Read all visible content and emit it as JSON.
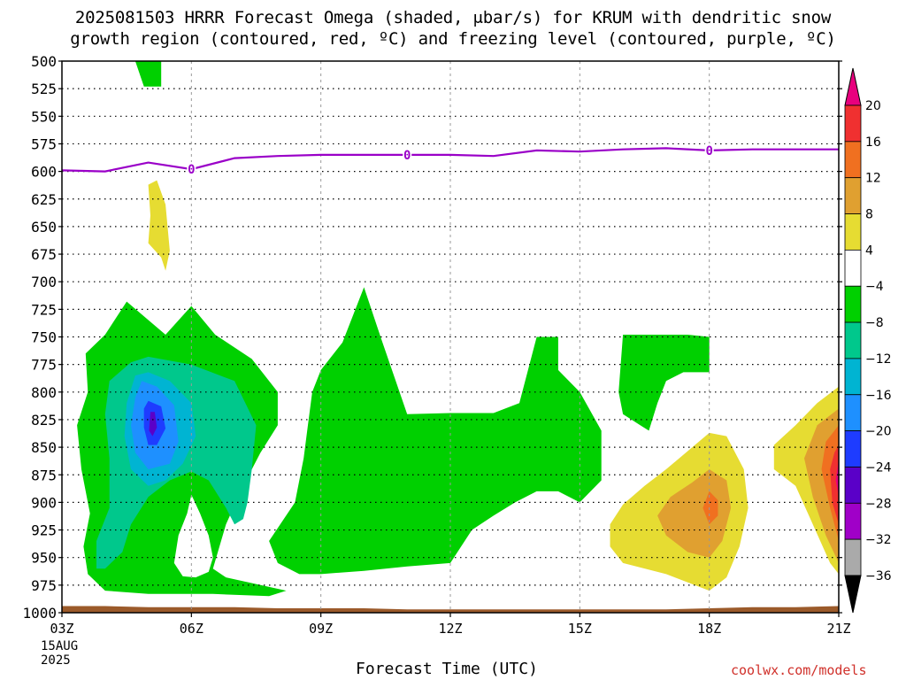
{
  "title": {
    "line1": "2025081503 HRRR Forecast Omega (shaded, μbar/s) for KRUM with dendritic snow",
    "line2": "growth region (contoured, red, ºC) and freezing level (contoured, purple, ºC)"
  },
  "x_axis_label": "Forecast Time (UTC)",
  "date_label": [
    "15AUG",
    "2025"
  ],
  "credit": "coolwx.com/models",
  "chart_data": {
    "type": "heatmap",
    "y_axis": {
      "ticks": [
        500,
        525,
        550,
        575,
        600,
        625,
        650,
        675,
        700,
        725,
        750,
        775,
        800,
        825,
        850,
        875,
        900,
        925,
        950,
        975,
        1000
      ],
      "tick_labels": [
        "500",
        "525",
        "550",
        "575",
        "600",
        "625",
        "650",
        "675",
        "700",
        "725",
        "750",
        "775",
        "800",
        "825",
        "850",
        "875",
        "900",
        "925",
        "950",
        "975",
        "1000"
      ],
      "range": [
        500,
        1000
      ],
      "inverted": true
    },
    "x_axis": {
      "tick_hours": [
        3,
        6,
        9,
        12,
        15,
        18,
        21
      ],
      "tick_labels": [
        "03Z",
        "06Z",
        "09Z",
        "12Z",
        "15Z",
        "18Z",
        "21Z"
      ],
      "range": [
        3,
        21
      ]
    },
    "grid": true,
    "freezing_level": {
      "color": "#9a00c8",
      "label": "0",
      "label_hours": [
        6,
        11,
        18
      ],
      "hours": [
        3,
        4,
        5,
        6,
        7,
        8,
        9,
        10,
        11,
        12,
        13,
        14,
        15,
        16,
        17,
        18,
        19,
        20,
        21
      ],
      "pressure": [
        599,
        600,
        592,
        598,
        588,
        586,
        585,
        585,
        585,
        585,
        586,
        581,
        582,
        580,
        579,
        581,
        580,
        580,
        580
      ]
    },
    "colorbar": {
      "labels": [
        "20",
        "16",
        "12",
        "8",
        "4",
        "−4",
        "−8",
        "−12",
        "−16",
        "−20",
        "−24",
        "−28",
        "−32",
        "−36"
      ],
      "bands": [
        {
          "from": 20,
          "to": 99,
          "color": "#e8007e"
        },
        {
          "from": 16,
          "to": 20,
          "color": "#f03030"
        },
        {
          "from": 12,
          "to": 16,
          "color": "#f07020"
        },
        {
          "from": 8,
          "to": 12,
          "color": "#e0a030"
        },
        {
          "from": 4,
          "to": 8,
          "color": "#e6dc32"
        },
        {
          "from": -4,
          "to": 4,
          "color": "#ffffff"
        },
        {
          "from": -8,
          "to": -4,
          "color": "#00d000"
        },
        {
          "from": -12,
          "to": -8,
          "color": "#00c88c"
        },
        {
          "from": -16,
          "to": -12,
          "color": "#00b4d2"
        },
        {
          "from": -20,
          "to": -16,
          "color": "#1e90ff"
        },
        {
          "from": -24,
          "to": -20,
          "color": "#1e3cff"
        },
        {
          "from": -28,
          "to": -24,
          "color": "#5a00c8"
        },
        {
          "from": -32,
          "to": -28,
          "color": "#a000c8"
        },
        {
          "from": -36,
          "to": -32,
          "color": "#aaaaaa"
        },
        {
          "from": -99,
          "to": -36,
          "color": "#000000"
        }
      ]
    },
    "regions": [
      {
        "name": "green-top",
        "color": "#00d000",
        "pts": [
          [
            4.7,
            500
          ],
          [
            5.3,
            500
          ],
          [
            5.3,
            523
          ],
          [
            4.9,
            523
          ]
        ]
      },
      {
        "name": "yellow-mid",
        "color": "#e6dc32",
        "pts": [
          [
            5.0,
            612
          ],
          [
            5.2,
            608
          ],
          [
            5.4,
            630
          ],
          [
            5.5,
            672
          ],
          [
            5.4,
            690
          ],
          [
            5.3,
            678
          ],
          [
            5.0,
            665
          ],
          [
            5.05,
            640
          ]
        ]
      },
      {
        "name": "green-left",
        "color": "#00d000",
        "pts": [
          [
            4.0,
            748
          ],
          [
            4.5,
            718
          ],
          [
            5.4,
            748
          ],
          [
            6.0,
            722
          ],
          [
            6.55,
            748
          ],
          [
            7.4,
            770
          ],
          [
            8.0,
            800
          ],
          [
            8.0,
            830
          ],
          [
            7.6,
            855
          ],
          [
            7.2,
            885
          ],
          [
            6.8,
            920
          ],
          [
            6.5,
            960
          ],
          [
            6.8,
            968
          ],
          [
            8.2,
            980
          ],
          [
            7.8,
            985
          ],
          [
            6.5,
            983
          ],
          [
            5.0,
            983
          ],
          [
            4.0,
            980
          ],
          [
            3.6,
            965
          ],
          [
            3.5,
            940
          ],
          [
            3.65,
            910
          ],
          [
            3.45,
            870
          ],
          [
            3.35,
            830
          ],
          [
            3.6,
            800
          ],
          [
            3.55,
            765
          ]
        ]
      },
      {
        "name": "green-mid",
        "color": "#00d000",
        "pts": [
          [
            8.8,
            800
          ],
          [
            9.0,
            780
          ],
          [
            9.5,
            755
          ],
          [
            10.0,
            705
          ],
          [
            10.4,
            752
          ],
          [
            11.0,
            820
          ],
          [
            12.0,
            819
          ],
          [
            13.0,
            819
          ],
          [
            13.6,
            810
          ],
          [
            14.0,
            750
          ],
          [
            14.5,
            750
          ],
          [
            14.5,
            780
          ],
          [
            15.0,
            800
          ],
          [
            15.5,
            835
          ],
          [
            15.5,
            880
          ],
          [
            15.0,
            900
          ],
          [
            14.5,
            890
          ],
          [
            14.0,
            890
          ],
          [
            13.5,
            900
          ],
          [
            13.0,
            912
          ],
          [
            12.5,
            925
          ],
          [
            12.0,
            955
          ],
          [
            11.0,
            958
          ],
          [
            10.0,
            962
          ],
          [
            9.0,
            965
          ],
          [
            8.5,
            965
          ],
          [
            8.0,
            955
          ],
          [
            7.8,
            935
          ],
          [
            8.4,
            900
          ],
          [
            8.6,
            860
          ],
          [
            8.7,
            830
          ]
        ]
      },
      {
        "name": "green-right",
        "color": "#00d000",
        "pts": [
          [
            16.0,
            748
          ],
          [
            17.5,
            748
          ],
          [
            18.0,
            750
          ],
          [
            18.0,
            782
          ],
          [
            17.4,
            782
          ],
          [
            17.0,
            790
          ],
          [
            16.8,
            810
          ],
          [
            16.6,
            835
          ],
          [
            16.4,
            830
          ],
          [
            16.0,
            820
          ],
          [
            15.9,
            800
          ]
        ]
      },
      {
        "name": "white-hole",
        "color": "#ffffff",
        "pts": [
          [
            6.0,
            893
          ],
          [
            5.9,
            910
          ],
          [
            5.7,
            930
          ],
          [
            5.6,
            955
          ],
          [
            5.8,
            967
          ],
          [
            6.1,
            968
          ],
          [
            6.4,
            963
          ],
          [
            6.5,
            950
          ],
          [
            6.4,
            930
          ],
          [
            6.2,
            910
          ]
        ]
      },
      {
        "name": "teal-left",
        "color": "#00c88c",
        "pts": [
          [
            4.6,
            773
          ],
          [
            5.0,
            768
          ],
          [
            6.0,
            775
          ],
          [
            7.0,
            790
          ],
          [
            7.5,
            830
          ],
          [
            7.4,
            870
          ],
          [
            7.3,
            900
          ],
          [
            7.2,
            915
          ],
          [
            7.0,
            920
          ],
          [
            6.8,
            905
          ],
          [
            6.4,
            880
          ],
          [
            6.0,
            872
          ],
          [
            5.5,
            880
          ],
          [
            5.0,
            895
          ],
          [
            4.6,
            920
          ],
          [
            4.4,
            945
          ],
          [
            4.0,
            960
          ],
          [
            3.8,
            960
          ],
          [
            3.8,
            935
          ],
          [
            4.1,
            905
          ],
          [
            4.1,
            860
          ],
          [
            4.0,
            820
          ],
          [
            4.1,
            790
          ]
        ]
      },
      {
        "name": "cyan-left",
        "color": "#00b4d2",
        "pts": [
          [
            4.7,
            785
          ],
          [
            5.0,
            782
          ],
          [
            5.5,
            790
          ],
          [
            6.0,
            810
          ],
          [
            6.1,
            840
          ],
          [
            5.8,
            865
          ],
          [
            5.4,
            880
          ],
          [
            5.0,
            885
          ],
          [
            4.6,
            870
          ],
          [
            4.45,
            840
          ],
          [
            4.5,
            810
          ]
        ]
      },
      {
        "name": "blue-left",
        "color": "#1e90ff",
        "pts": [
          [
            4.85,
            790
          ],
          [
            5.2,
            795
          ],
          [
            5.6,
            812
          ],
          [
            5.7,
            845
          ],
          [
            5.5,
            865
          ],
          [
            5.0,
            870
          ],
          [
            4.7,
            855
          ],
          [
            4.6,
            830
          ],
          [
            4.7,
            805
          ]
        ]
      },
      {
        "name": "blue2-left",
        "color": "#1e3cff",
        "pts": [
          [
            5.0,
            808
          ],
          [
            5.3,
            813
          ],
          [
            5.4,
            833
          ],
          [
            5.2,
            848
          ],
          [
            5.0,
            848
          ],
          [
            4.9,
            832
          ],
          [
            4.9,
            815
          ]
        ]
      },
      {
        "name": "violet-left",
        "color": "#5a00c8",
        "pts": [
          [
            5.05,
            818
          ],
          [
            5.15,
            818
          ],
          [
            5.2,
            832
          ],
          [
            5.1,
            840
          ],
          [
            5.02,
            835
          ]
        ]
      },
      {
        "name": "yellow-right",
        "color": "#e6dc32",
        "pts": [
          [
            17.0,
            870
          ],
          [
            18.0,
            837
          ],
          [
            18.4,
            840
          ],
          [
            18.8,
            870
          ],
          [
            18.9,
            905
          ],
          [
            18.7,
            940
          ],
          [
            18.4,
            968
          ],
          [
            18.0,
            980
          ],
          [
            17.0,
            965
          ],
          [
            16.0,
            955
          ],
          [
            15.7,
            940
          ],
          [
            15.7,
            920
          ],
          [
            16.0,
            902
          ],
          [
            16.5,
            885
          ]
        ]
      },
      {
        "name": "orange-right",
        "color": "#e0a030",
        "pts": [
          [
            17.6,
            882
          ],
          [
            18.0,
            870
          ],
          [
            18.4,
            880
          ],
          [
            18.5,
            905
          ],
          [
            18.3,
            935
          ],
          [
            18.0,
            950
          ],
          [
            17.5,
            945
          ],
          [
            17.0,
            930
          ],
          [
            16.8,
            912
          ],
          [
            17.1,
            895
          ]
        ]
      },
      {
        "name": "orange2-right",
        "color": "#f07020",
        "pts": [
          [
            18.0,
            890
          ],
          [
            18.2,
            898
          ],
          [
            18.2,
            912
          ],
          [
            18.0,
            920
          ],
          [
            17.85,
            905
          ]
        ]
      },
      {
        "name": "yellow-edge",
        "color": "#e6dc32",
        "pts": [
          [
            21.0,
            795
          ],
          [
            21.0,
            965
          ],
          [
            20.8,
            955
          ],
          [
            20.4,
            920
          ],
          [
            20.0,
            885
          ],
          [
            19.5,
            870
          ],
          [
            19.5,
            848
          ],
          [
            20.0,
            830
          ],
          [
            20.5,
            810
          ]
        ]
      },
      {
        "name": "orange-edge",
        "color": "#e0a030",
        "pts": [
          [
            21.0,
            815
          ],
          [
            21.0,
            955
          ],
          [
            20.7,
            930
          ],
          [
            20.4,
            895
          ],
          [
            20.2,
            860
          ],
          [
            20.5,
            830
          ]
        ]
      },
      {
        "name": "orange2-edge",
        "color": "#f07020",
        "pts": [
          [
            21.0,
            830
          ],
          [
            21.0,
            935
          ],
          [
            20.8,
            905
          ],
          [
            20.6,
            870
          ],
          [
            20.7,
            845
          ]
        ]
      },
      {
        "name": "red-edge",
        "color": "#f03030",
        "pts": [
          [
            21.0,
            848
          ],
          [
            21.0,
            920
          ],
          [
            20.85,
            900
          ],
          [
            20.8,
            870
          ],
          [
            20.9,
            855
          ]
        ]
      },
      {
        "name": "magenta-edge",
        "color": "#e8007e",
        "pts": [
          [
            21.0,
            860
          ],
          [
            21.0,
            895
          ],
          [
            20.93,
            880
          ]
        ]
      }
    ],
    "terrain": {
      "color": "#9b5a2a",
      "hours": [
        3,
        4,
        5,
        6,
        7,
        8,
        9,
        10,
        11,
        12,
        13,
        14,
        15,
        16,
        17,
        18,
        19,
        20,
        21
      ],
      "pressure": [
        994,
        994,
        995,
        995,
        995,
        996,
        996,
        996,
        997,
        997,
        997,
        997,
        997,
        997,
        997,
        996,
        995,
        995,
        994
      ]
    }
  }
}
